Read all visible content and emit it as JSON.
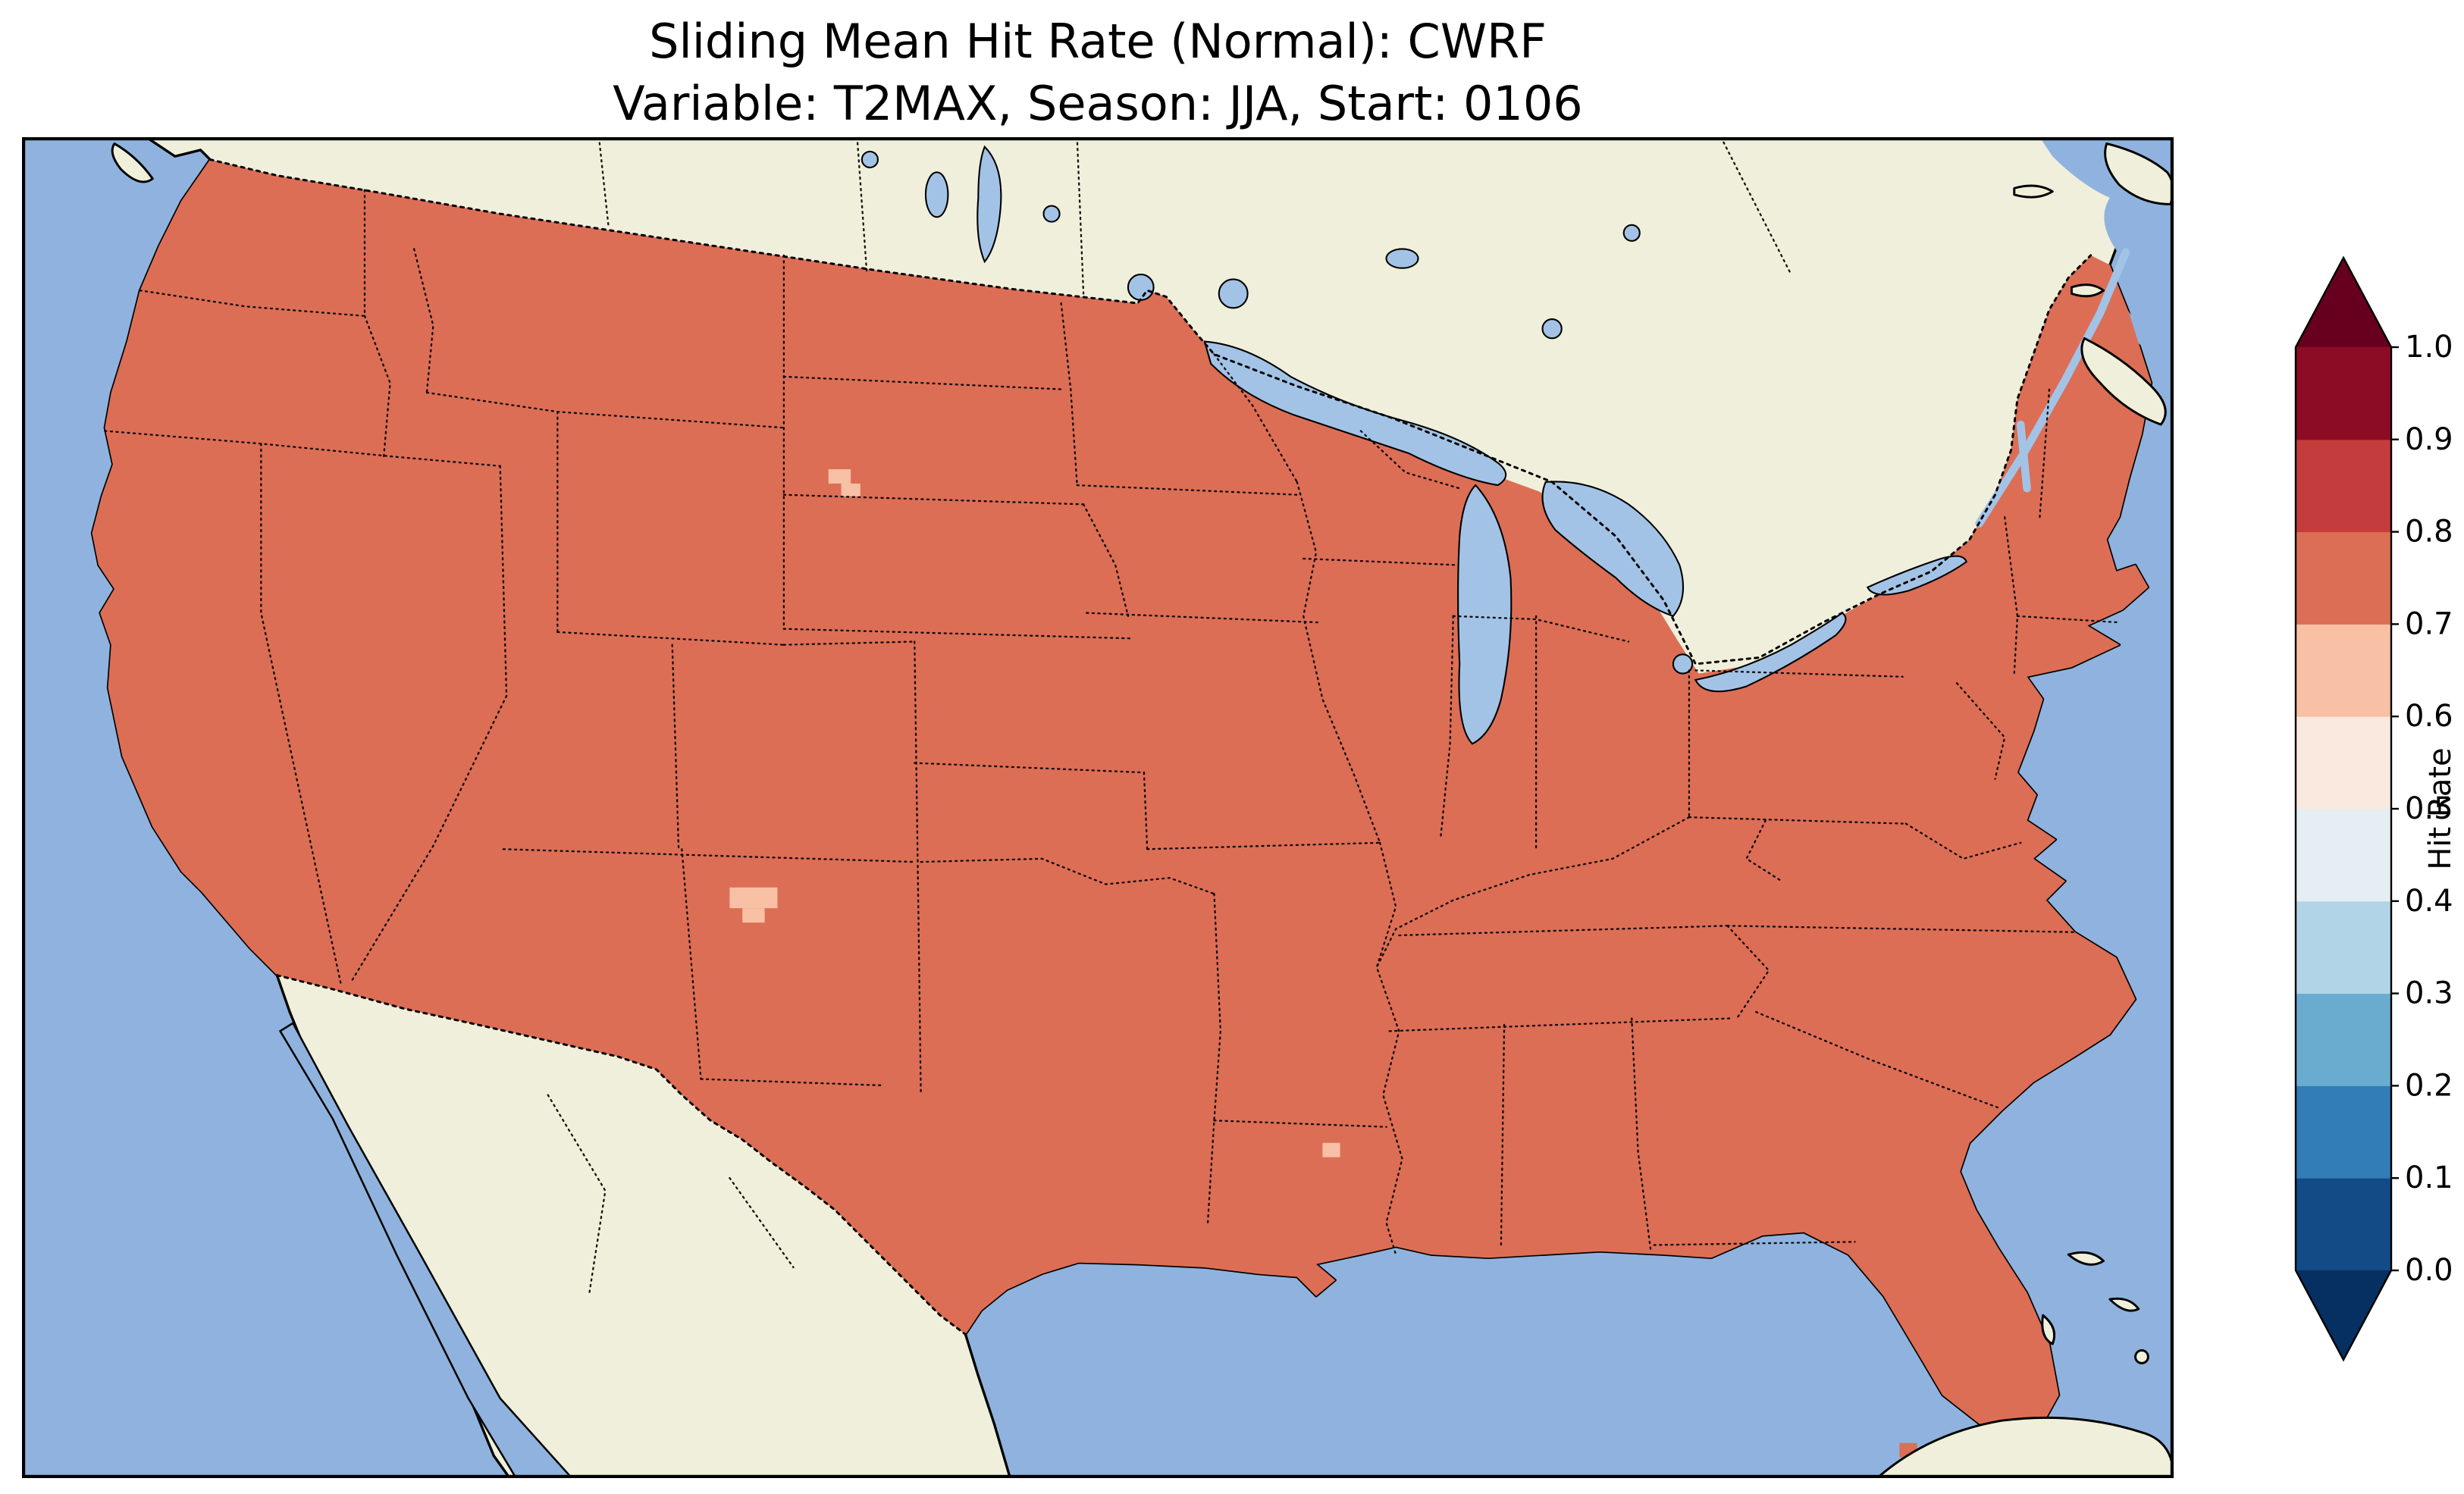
{
  "title": {
    "line1": "Sliding Mean Hit Rate (Normal): CWRF",
    "line2": "Variable: T2MAX, Season: JJA, Start: 0106"
  },
  "colorbar": {
    "label": "Hit Rate",
    "ticks": [
      "0.0",
      "0.1",
      "0.2",
      "0.3",
      "0.4",
      "0.5",
      "0.6",
      "0.7",
      "0.8",
      "0.9",
      "1.0"
    ],
    "segment_colors": [
      "#134b86",
      "#327cb7",
      "#6aacd0",
      "#b1d5e7",
      "#e4eef3",
      "#fae9df",
      "#f8c0a4",
      "#dc6e56",
      "#c43c3c",
      "#8c0c25"
    ],
    "under_color": "#053061",
    "over_color": "#67001f"
  },
  "colors": {
    "ocean": "#8fb3de",
    "land": "#efefdb",
    "lake": "#a3c3e6",
    "hit_rate_fill": "#dc6e56",
    "anomaly_fill": "#f8c0a4",
    "coastline": "#000000"
  },
  "chart_data": {
    "type": "heatmap",
    "title": "Sliding Mean Hit Rate (Normal): CWRF",
    "subtitle": "Variable: T2MAX, Season: JJA, Start: 0106",
    "model": "CWRF",
    "variable": "T2MAX",
    "season": "JJA",
    "start": "0106",
    "geography": "Contiguous United States choropleth with surrounding Canada, Mexico, Great Lakes, Atlantic and Pacific oceans",
    "value_label": "Hit Rate",
    "colorbar": {
      "orientation": "vertical",
      "position": "right",
      "extend": "both",
      "tick_values": [
        0.0,
        0.1,
        0.2,
        0.3,
        0.4,
        0.5,
        0.6,
        0.7,
        0.8,
        0.9,
        1.0
      ],
      "range": [
        0.0,
        1.0
      ]
    },
    "values": {
      "conus_dominant_bin": [
        0.7,
        0.8
      ],
      "anomalies": [
        {
          "region": "central South Dakota",
          "bin": [
            0.6,
            0.7
          ]
        },
        {
          "region": "west-central New Mexico",
          "bin": [
            0.6,
            0.7
          ]
        },
        {
          "region": "north-central Louisiana",
          "bin": [
            0.6,
            0.7
          ]
        },
        {
          "region": "Florida Keys cells",
          "bin": [
            0.7,
            0.8
          ]
        }
      ]
    },
    "legend_position": "right",
    "grid": false
  }
}
